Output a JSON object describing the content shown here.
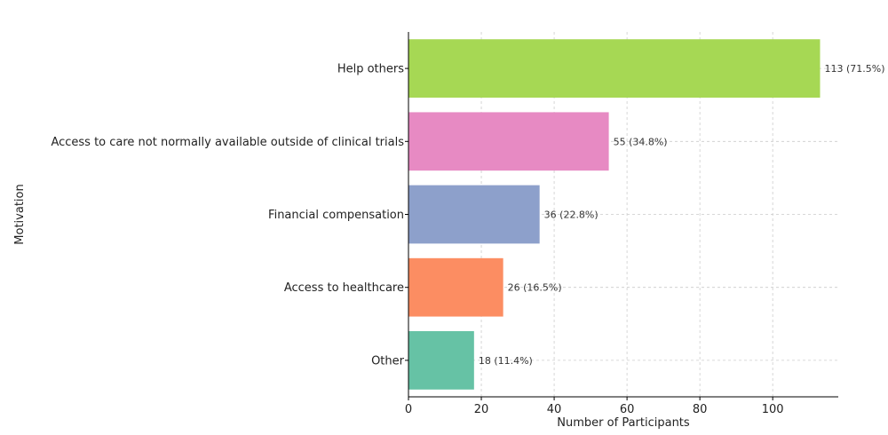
{
  "chart_data": {
    "type": "bar",
    "orientation": "horizontal",
    "title": "",
    "xlabel": "Number of Participants",
    "ylabel": "Motivation",
    "xlim": [
      0,
      118
    ],
    "xticks": [
      "0",
      "20",
      "40",
      "60",
      "80",
      "100"
    ],
    "grid": true,
    "categories": [
      "Help others",
      "Access to care not normally available outside of clinical trials",
      "Financial compensation",
      "Access to healthcare",
      "Other"
    ],
    "values": [
      113,
      55,
      36,
      26,
      18
    ],
    "data_labels": [
      "113 (71.5%)",
      "55 (34.8%)",
      "36 (22.8%)",
      "26 (16.5%)",
      "18 (11.4%)"
    ],
    "colors": [
      "#a6d854",
      "#e78ac3",
      "#8da0cb",
      "#fc8d62",
      "#66c2a5"
    ]
  }
}
